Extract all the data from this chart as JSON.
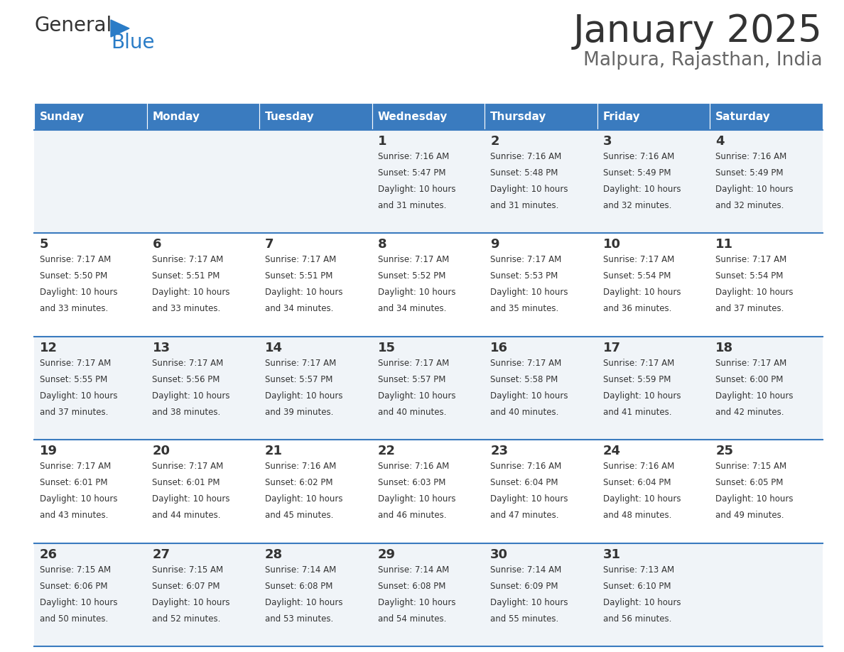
{
  "title": "January 2025",
  "subtitle": "Malpura, Rajasthan, India",
  "days_of_week": [
    "Sunday",
    "Monday",
    "Tuesday",
    "Wednesday",
    "Thursday",
    "Friday",
    "Saturday"
  ],
  "header_bg": "#3a7bbf",
  "header_text": "#ffffff",
  "row_bg_light": "#f0f4f8",
  "row_bg_white": "#ffffff",
  "cell_text": "#333333",
  "day_num_color": "#333333",
  "border_color": "#3a7bbf",
  "title_color": "#333333",
  "subtitle_color": "#666666",
  "logo_text_color": "#333333",
  "logo_blue_color": "#2a7cc7",
  "calendar_data": [
    [
      null,
      null,
      null,
      {
        "day": 1,
        "sunrise": "7:16 AM",
        "sunset": "5:47 PM",
        "daylight": "10 hours and 31 minutes."
      },
      {
        "day": 2,
        "sunrise": "7:16 AM",
        "sunset": "5:48 PM",
        "daylight": "10 hours and 31 minutes."
      },
      {
        "day": 3,
        "sunrise": "7:16 AM",
        "sunset": "5:49 PM",
        "daylight": "10 hours and 32 minutes."
      },
      {
        "day": 4,
        "sunrise": "7:16 AM",
        "sunset": "5:49 PM",
        "daylight": "10 hours and 32 minutes."
      }
    ],
    [
      {
        "day": 5,
        "sunrise": "7:17 AM",
        "sunset": "5:50 PM",
        "daylight": "10 hours and 33 minutes."
      },
      {
        "day": 6,
        "sunrise": "7:17 AM",
        "sunset": "5:51 PM",
        "daylight": "10 hours and 33 minutes."
      },
      {
        "day": 7,
        "sunrise": "7:17 AM",
        "sunset": "5:51 PM",
        "daylight": "10 hours and 34 minutes."
      },
      {
        "day": 8,
        "sunrise": "7:17 AM",
        "sunset": "5:52 PM",
        "daylight": "10 hours and 34 minutes."
      },
      {
        "day": 9,
        "sunrise": "7:17 AM",
        "sunset": "5:53 PM",
        "daylight": "10 hours and 35 minutes."
      },
      {
        "day": 10,
        "sunrise": "7:17 AM",
        "sunset": "5:54 PM",
        "daylight": "10 hours and 36 minutes."
      },
      {
        "day": 11,
        "sunrise": "7:17 AM",
        "sunset": "5:54 PM",
        "daylight": "10 hours and 37 minutes."
      }
    ],
    [
      {
        "day": 12,
        "sunrise": "7:17 AM",
        "sunset": "5:55 PM",
        "daylight": "10 hours and 37 minutes."
      },
      {
        "day": 13,
        "sunrise": "7:17 AM",
        "sunset": "5:56 PM",
        "daylight": "10 hours and 38 minutes."
      },
      {
        "day": 14,
        "sunrise": "7:17 AM",
        "sunset": "5:57 PM",
        "daylight": "10 hours and 39 minutes."
      },
      {
        "day": 15,
        "sunrise": "7:17 AM",
        "sunset": "5:57 PM",
        "daylight": "10 hours and 40 minutes."
      },
      {
        "day": 16,
        "sunrise": "7:17 AM",
        "sunset": "5:58 PM",
        "daylight": "10 hours and 40 minutes."
      },
      {
        "day": 17,
        "sunrise": "7:17 AM",
        "sunset": "5:59 PM",
        "daylight": "10 hours and 41 minutes."
      },
      {
        "day": 18,
        "sunrise": "7:17 AM",
        "sunset": "6:00 PM",
        "daylight": "10 hours and 42 minutes."
      }
    ],
    [
      {
        "day": 19,
        "sunrise": "7:17 AM",
        "sunset": "6:01 PM",
        "daylight": "10 hours and 43 minutes."
      },
      {
        "day": 20,
        "sunrise": "7:17 AM",
        "sunset": "6:01 PM",
        "daylight": "10 hours and 44 minutes."
      },
      {
        "day": 21,
        "sunrise": "7:16 AM",
        "sunset": "6:02 PM",
        "daylight": "10 hours and 45 minutes."
      },
      {
        "day": 22,
        "sunrise": "7:16 AM",
        "sunset": "6:03 PM",
        "daylight": "10 hours and 46 minutes."
      },
      {
        "day": 23,
        "sunrise": "7:16 AM",
        "sunset": "6:04 PM",
        "daylight": "10 hours and 47 minutes."
      },
      {
        "day": 24,
        "sunrise": "7:16 AM",
        "sunset": "6:04 PM",
        "daylight": "10 hours and 48 minutes."
      },
      {
        "day": 25,
        "sunrise": "7:15 AM",
        "sunset": "6:05 PM",
        "daylight": "10 hours and 49 minutes."
      }
    ],
    [
      {
        "day": 26,
        "sunrise": "7:15 AM",
        "sunset": "6:06 PM",
        "daylight": "10 hours and 50 minutes."
      },
      {
        "day": 27,
        "sunrise": "7:15 AM",
        "sunset": "6:07 PM",
        "daylight": "10 hours and 52 minutes."
      },
      {
        "day": 28,
        "sunrise": "7:14 AM",
        "sunset": "6:08 PM",
        "daylight": "10 hours and 53 minutes."
      },
      {
        "day": 29,
        "sunrise": "7:14 AM",
        "sunset": "6:08 PM",
        "daylight": "10 hours and 54 minutes."
      },
      {
        "day": 30,
        "sunrise": "7:14 AM",
        "sunset": "6:09 PM",
        "daylight": "10 hours and 55 minutes."
      },
      {
        "day": 31,
        "sunrise": "7:13 AM",
        "sunset": "6:10 PM",
        "daylight": "10 hours and 56 minutes."
      },
      null
    ]
  ]
}
